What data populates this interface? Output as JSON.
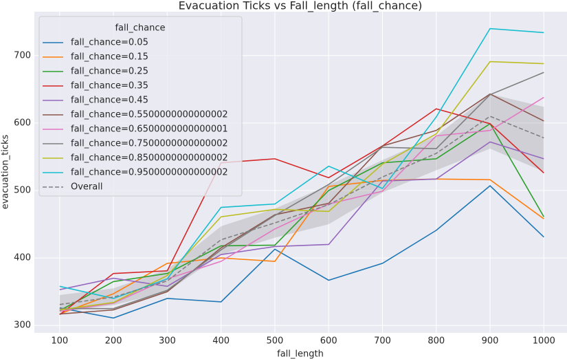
{
  "chart_data": {
    "type": "line",
    "title": "Evacuation Ticks vs Fall_length (fall_chance)",
    "x_label": "fall_length",
    "y_label": "evacuation_ticks",
    "legend_title": "fall_chance",
    "legend_position": "upper-left",
    "grid": true,
    "x": [
      100,
      200,
      300,
      400,
      500,
      600,
      700,
      800,
      900,
      1000
    ],
    "xlim": [
      53,
      1043
    ],
    "xticks": [
      100,
      200,
      300,
      400,
      500,
      600,
      700,
      800,
      900,
      1000
    ],
    "ylim": [
      289,
      765
    ],
    "yticks": [
      300,
      400,
      500,
      600,
      700
    ],
    "series": [
      {
        "name": "fall_chance=0.05",
        "color": "#1f77b4",
        "values": [
          326,
          311,
          340,
          335,
          413,
          367,
          392,
          441,
          507,
          431
        ]
      },
      {
        "name": "fall_chance=0.15",
        "color": "#ff7f0e",
        "values": [
          317,
          347,
          392,
          400,
          395,
          506,
          515,
          517,
          516,
          458
        ]
      },
      {
        "name": "fall_chance=0.25",
        "color": "#2ca02c",
        "values": [
          322,
          365,
          377,
          418,
          419,
          500,
          541,
          547,
          599,
          461
        ]
      },
      {
        "name": "fall_chance=0.35",
        "color": "#d62728",
        "values": [
          316,
          377,
          381,
          541,
          547,
          519,
          566,
          621,
          599,
          526
        ]
      },
      {
        "name": "fall_chance=0.45",
        "color": "#9467bd",
        "values": [
          353,
          370,
          358,
          405,
          417,
          420,
          514,
          517,
          572,
          547
        ]
      },
      {
        "name": "fall_chance=0.5500000000000002",
        "color": "#8c564b",
        "values": [
          317,
          323,
          350,
          415,
          464,
          481,
          566,
          589,
          643,
          603
        ]
      },
      {
        "name": "fall_chance=0.6500000000000001",
        "color": "#e377c2",
        "values": [
          321,
          333,
          369,
          395,
          443,
          480,
          499,
          581,
          589,
          638
        ]
      },
      {
        "name": "fall_chance=0.7500000000000002",
        "color": "#7f7f7f",
        "values": [
          325,
          325,
          352,
          412,
          463,
          509,
          564,
          562,
          642,
          675
        ]
      },
      {
        "name": "fall_chance=0.8500000000000002",
        "color": "#bcbd22",
        "values": [
          323,
          334,
          374,
          461,
          472,
          469,
          539,
          584,
          691,
          688
        ]
      },
      {
        "name": "fall_chance=0.9500000000000002",
        "color": "#17becf",
        "values": [
          358,
          340,
          369,
          475,
          480,
          536,
          503,
          609,
          740,
          734
        ]
      },
      {
        "name": "Overall",
        "color": "#808080",
        "dashed": true,
        "values": [
          331,
          342,
          366,
          427,
          452,
          479,
          520,
          555,
          610,
          578
        ],
        "ci_low": [
          320,
          330,
          350,
          405,
          430,
          450,
          497,
          530,
          562,
          528
        ],
        "ci_high": [
          345,
          355,
          383,
          447,
          473,
          508,
          545,
          581,
          643,
          624
        ]
      }
    ]
  }
}
